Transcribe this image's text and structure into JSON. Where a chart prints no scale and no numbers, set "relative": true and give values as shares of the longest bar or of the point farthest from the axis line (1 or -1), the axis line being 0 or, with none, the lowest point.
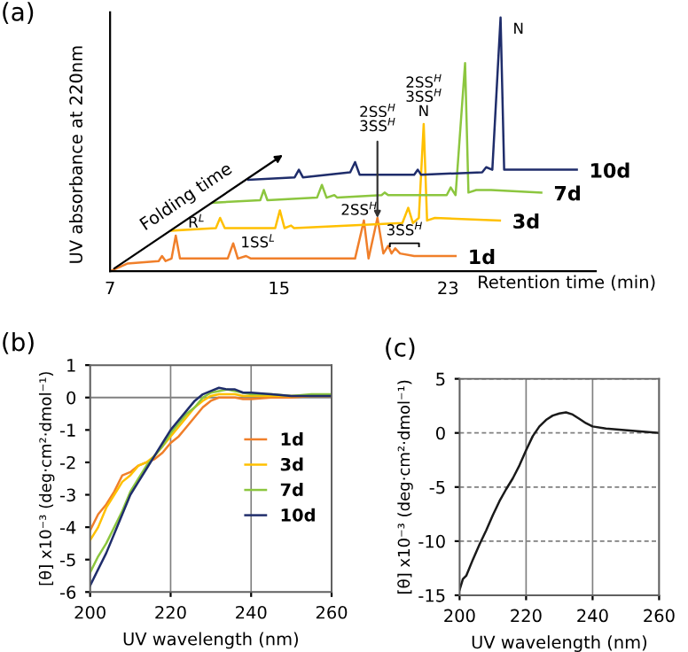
{
  "chart_data": [
    {
      "type": "line",
      "title": "(a)",
      "xlabel": "Retention time (min)",
      "ylabel": "UV absorbance at 220nm",
      "relative": true,
      "xlim": [
        7,
        30
      ],
      "xticks": [
        7,
        15,
        23
      ],
      "grid": false,
      "legend": false,
      "series": [
        {
          "name": "1d",
          "color": "#f07f2a",
          "x": [
            7,
            7.81,
            9.3,
            9.46,
            9.63,
            9.91,
            10.11,
            10.31,
            12.57,
            12.83,
            13.05,
            13.44,
            13.67,
            18.6,
            19.02,
            19.24,
            19.66,
            19.94,
            20.17,
            20.33,
            20.5,
            20.73,
            21.4,
            23.36
          ],
          "values": [
            0,
            0.03,
            0.04,
            0.06,
            0.04,
            0.05,
            0.14,
            0.05,
            0.05,
            0.11,
            0.05,
            0.06,
            0.05,
            0.05,
            0.2,
            0.05,
            0.21,
            0.07,
            0.1,
            0.07,
            0.09,
            0.07,
            0.06,
            0.06
          ]
        },
        {
          "name": "3d",
          "color": "#ffc000",
          "x": [
            9.91,
            12.01,
            12.21,
            12.43,
            14.82,
            15.04,
            15.26,
            15.57,
            15.71,
            20.84,
            21.12,
            21.34,
            21.62,
            21.85,
            22.01,
            22.38,
            25.46
          ],
          "values": [
            0.16,
            0.17,
            0.21,
            0.17,
            0.17,
            0.24,
            0.17,
            0.18,
            0.17,
            0.19,
            0.25,
            0.19,
            0.21,
            0.58,
            0.2,
            0.21,
            0.2
          ]
        },
        {
          "name": "7d",
          "color": "#8cc63f",
          "x": [
            11.87,
            14.11,
            14.28,
            14.45,
            16.8,
            17.03,
            17.25,
            17.62,
            17.76,
            19.86,
            20.0,
            20.17,
            22.94,
            23.13,
            23.36,
            23.81,
            23.97,
            24.34,
            25.04,
            27.42
          ],
          "values": [
            0.27,
            0.28,
            0.32,
            0.28,
            0.29,
            0.34,
            0.29,
            0.3,
            0.29,
            0.3,
            0.31,
            0.3,
            0.3,
            0.33,
            0.3,
            0.82,
            0.31,
            0.32,
            0.32,
            0.31
          ]
        },
        {
          "name": "10d",
          "color": "#1f2d6b",
          "x": [
            13.55,
            15.74,
            15.94,
            16.13,
            18.37,
            18.6,
            18.82,
            21.4,
            21.57,
            21.73,
            24.62,
            24.81,
            25.1,
            25.49,
            25.66,
            26.73,
            29.1
          ],
          "values": [
            0.36,
            0.37,
            0.4,
            0.37,
            0.39,
            0.43,
            0.38,
            0.38,
            0.4,
            0.38,
            0.39,
            0.41,
            0.4,
            1.0,
            0.4,
            0.4,
            0.4
          ]
        }
      ],
      "annotations": [
        "Folding time",
        {
          "text": "R$^{L}$",
          "x": 10.11,
          "y": 0.14
        },
        {
          "text": "1SS$^{L}$",
          "x": 12.83,
          "y": 0.11
        },
        {
          "text": "2SS$^{H}$",
          "x": 19.02,
          "y": 0.2
        },
        "3SS$^{H}$",
        {
          "text": "2SS$^{H}$\n3SS$^{H}$",
          "x": 19.66,
          "y": 0.21
        },
        {
          "text": "2SS$^{H}$\n3SS$^{H}$\nN",
          "x": 21.85,
          "y": 0.58
        },
        {
          "text": "N",
          "x": 25.49,
          "y": 1.0
        }
      ]
    },
    {
      "type": "line",
      "title": "(b)",
      "xlabel": "UV wavelength (nm)",
      "ylabel": "[θ] x10⁻³ (deg·cm²·dmol⁻¹)",
      "xlim": [
        200,
        260
      ],
      "xticks": [
        200,
        220,
        240,
        260
      ],
      "ylim": [
        -6,
        1
      ],
      "yticks": [
        -6,
        -5,
        -4,
        -3,
        -2,
        -1,
        0,
        1
      ],
      "grid": "x",
      "legend": "right",
      "ref_lines": [
        {
          "axis": "y",
          "value": 0,
          "color": "#808080"
        }
      ],
      "x": [
        200,
        202,
        204,
        206,
        208,
        210,
        212,
        214,
        216,
        218,
        220,
        222,
        224,
        226,
        228,
        230,
        232,
        234,
        236,
        238,
        240,
        245,
        250,
        255,
        260
      ],
      "series": [
        {
          "name": "1d",
          "color": "#f07f2a",
          "values": [
            -4.1,
            -3.6,
            -3.3,
            -2.9,
            -2.4,
            -2.3,
            -2.1,
            -2.0,
            -1.9,
            -1.7,
            -1.4,
            -1.2,
            -0.9,
            -0.6,
            -0.3,
            -0.1,
            0.0,
            0.0,
            0.0,
            -0.05,
            -0.05,
            0.0,
            0.0,
            0.05,
            0.05
          ]
        },
        {
          "name": "3d",
          "color": "#ffc000",
          "values": [
            -4.4,
            -4.0,
            -3.4,
            -3.0,
            -2.6,
            -2.4,
            -2.1,
            -2.0,
            -1.8,
            -1.5,
            -1.2,
            -0.9,
            -0.6,
            -0.3,
            -0.1,
            0.05,
            0.1,
            0.1,
            0.1,
            0.05,
            0.05,
            0.05,
            0.05,
            0.05,
            0.05
          ]
        },
        {
          "name": "7d",
          "color": "#8cc63f",
          "values": [
            -5.4,
            -4.9,
            -4.5,
            -4.0,
            -3.5,
            -2.9,
            -2.5,
            -2.1,
            -1.8,
            -1.5,
            -1.1,
            -0.8,
            -0.5,
            -0.3,
            0.0,
            0.15,
            0.2,
            0.25,
            0.2,
            0.15,
            0.1,
            0.1,
            0.05,
            0.1,
            0.1
          ]
        },
        {
          "name": "10d",
          "color": "#1f2d6b",
          "values": [
            -5.8,
            -5.3,
            -4.8,
            -4.2,
            -3.6,
            -3.0,
            -2.6,
            -2.2,
            -1.8,
            -1.4,
            -1.0,
            -0.7,
            -0.4,
            -0.1,
            0.1,
            0.2,
            0.3,
            0.25,
            0.25,
            0.15,
            0.15,
            0.1,
            0.05,
            0.05,
            0.05
          ]
        }
      ]
    },
    {
      "type": "line",
      "title": "(c)",
      "xlabel": "UV wavelength (nm)",
      "ylabel": "[θ] x10⁻³ (deg·cm²·dmol⁻¹)",
      "xlim": [
        200,
        260
      ],
      "xticks": [
        200,
        220,
        240,
        260
      ],
      "ylim": [
        -15,
        5
      ],
      "yticks": [
        -15,
        -10,
        -5,
        0,
        5
      ],
      "grid": true,
      "x": [
        200,
        201,
        202,
        204,
        206,
        208,
        210,
        212,
        214,
        216,
        218,
        220,
        222,
        224,
        226,
        228,
        230,
        232,
        234,
        236,
        238,
        240,
        244,
        248,
        252,
        256,
        260
      ],
      "series": [
        {
          "color": "#1a1a1a",
          "values": [
            -14.5,
            -13.5,
            -13.2,
            -11.7,
            -10.3,
            -9.0,
            -7.6,
            -6.3,
            -5.2,
            -4.2,
            -3.0,
            -1.6,
            -0.3,
            0.6,
            1.2,
            1.6,
            1.8,
            1.9,
            1.7,
            1.3,
            0.9,
            0.6,
            0.4,
            0.3,
            0.2,
            0.1,
            0.0
          ]
        }
      ]
    }
  ]
}
